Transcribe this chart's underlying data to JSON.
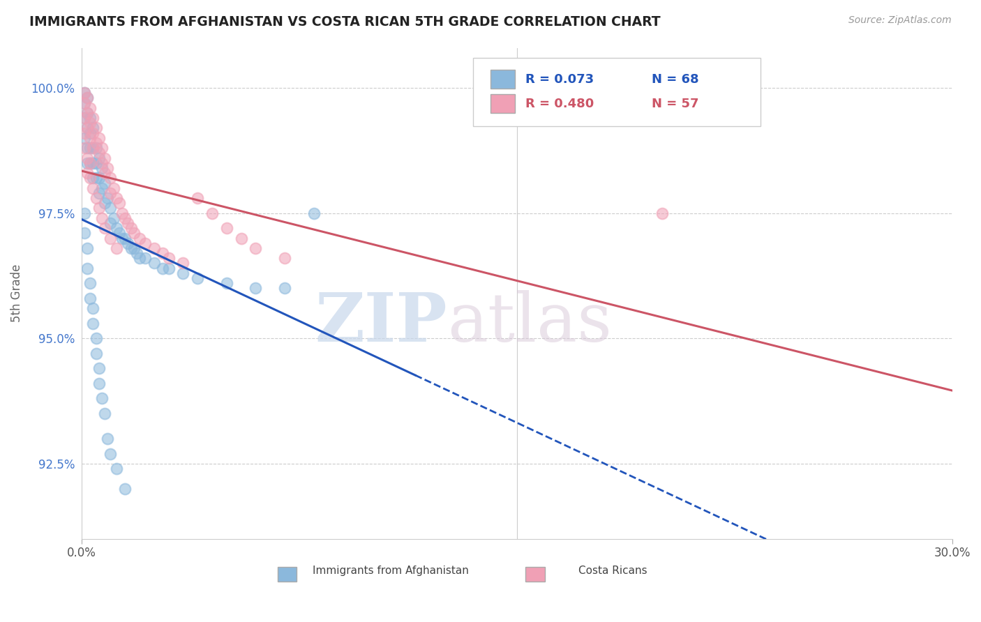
{
  "title": "IMMIGRANTS FROM AFGHANISTAN VS COSTA RICAN 5TH GRADE CORRELATION CHART",
  "source": "Source: ZipAtlas.com",
  "xlabel": "",
  "ylabel": "5th Grade",
  "xlim": [
    0.0,
    0.3
  ],
  "ylim": [
    0.91,
    1.008
  ],
  "xticks": [
    0.0,
    0.3
  ],
  "xticklabels": [
    "0.0%",
    "30.0%"
  ],
  "yticks": [
    0.925,
    0.95,
    0.975,
    1.0
  ],
  "yticklabels": [
    "92.5%",
    "95.0%",
    "97.5%",
    "100.0%"
  ],
  "legend_r1": "R = 0.073",
  "legend_n1": "N = 68",
  "legend_r2": "R = 0.480",
  "legend_n2": "N = 57",
  "blue_color": "#8BB8DC",
  "pink_color": "#F0A0B5",
  "blue_line_color": "#2255BB",
  "pink_line_color": "#CC5566",
  "watermark_zip": "ZIP",
  "watermark_atlas": "atlas",
  "blue_scatter_x": [
    0.001,
    0.001,
    0.001,
    0.001,
    0.002,
    0.002,
    0.002,
    0.002,
    0.002,
    0.003,
    0.003,
    0.003,
    0.003,
    0.004,
    0.004,
    0.004,
    0.004,
    0.005,
    0.005,
    0.005,
    0.006,
    0.006,
    0.006,
    0.007,
    0.007,
    0.008,
    0.008,
    0.009,
    0.01,
    0.01,
    0.011,
    0.012,
    0.013,
    0.014,
    0.015,
    0.016,
    0.017,
    0.018,
    0.019,
    0.02,
    0.022,
    0.025,
    0.028,
    0.03,
    0.035,
    0.04,
    0.05,
    0.06,
    0.07,
    0.08,
    0.001,
    0.001,
    0.002,
    0.002,
    0.003,
    0.003,
    0.004,
    0.004,
    0.005,
    0.005,
    0.006,
    0.006,
    0.007,
    0.008,
    0.009,
    0.01,
    0.012,
    0.015
  ],
  "blue_scatter_y": [
    0.999,
    0.997,
    0.994,
    0.99,
    0.998,
    0.995,
    0.992,
    0.988,
    0.985,
    0.994,
    0.991,
    0.988,
    0.985,
    0.992,
    0.988,
    0.985,
    0.982,
    0.988,
    0.985,
    0.982,
    0.986,
    0.982,
    0.979,
    0.984,
    0.98,
    0.981,
    0.977,
    0.978,
    0.976,
    0.973,
    0.974,
    0.972,
    0.971,
    0.97,
    0.97,
    0.969,
    0.968,
    0.968,
    0.967,
    0.966,
    0.966,
    0.965,
    0.964,
    0.964,
    0.963,
    0.962,
    0.961,
    0.96,
    0.96,
    0.975,
    0.975,
    0.971,
    0.968,
    0.964,
    0.961,
    0.958,
    0.956,
    0.953,
    0.95,
    0.947,
    0.944,
    0.941,
    0.938,
    0.935,
    0.93,
    0.927,
    0.924,
    0.92
  ],
  "pink_scatter_x": [
    0.001,
    0.001,
    0.001,
    0.001,
    0.002,
    0.002,
    0.002,
    0.003,
    0.003,
    0.003,
    0.004,
    0.004,
    0.004,
    0.005,
    0.005,
    0.006,
    0.006,
    0.007,
    0.007,
    0.008,
    0.008,
    0.009,
    0.01,
    0.01,
    0.011,
    0.012,
    0.013,
    0.014,
    0.015,
    0.016,
    0.017,
    0.018,
    0.02,
    0.022,
    0.025,
    0.028,
    0.03,
    0.035,
    0.04,
    0.045,
    0.05,
    0.055,
    0.06,
    0.07,
    0.001,
    0.002,
    0.002,
    0.003,
    0.003,
    0.004,
    0.005,
    0.006,
    0.007,
    0.008,
    0.01,
    0.012,
    0.2
  ],
  "pink_scatter_y": [
    0.999,
    0.997,
    0.994,
    0.991,
    0.998,
    0.995,
    0.992,
    0.996,
    0.993,
    0.99,
    0.994,
    0.991,
    0.988,
    0.992,
    0.989,
    0.99,
    0.987,
    0.988,
    0.985,
    0.986,
    0.983,
    0.984,
    0.982,
    0.979,
    0.98,
    0.978,
    0.977,
    0.975,
    0.974,
    0.973,
    0.972,
    0.971,
    0.97,
    0.969,
    0.968,
    0.967,
    0.966,
    0.965,
    0.978,
    0.975,
    0.972,
    0.97,
    0.968,
    0.966,
    0.988,
    0.986,
    0.983,
    0.985,
    0.982,
    0.98,
    0.978,
    0.976,
    0.974,
    0.972,
    0.97,
    0.968,
    0.975
  ],
  "blue_trend_x": [
    0.0,
    0.115,
    0.3
  ],
  "blue_trend_solid_end": 0.115,
  "pink_trend_x": [
    0.0,
    0.3
  ]
}
